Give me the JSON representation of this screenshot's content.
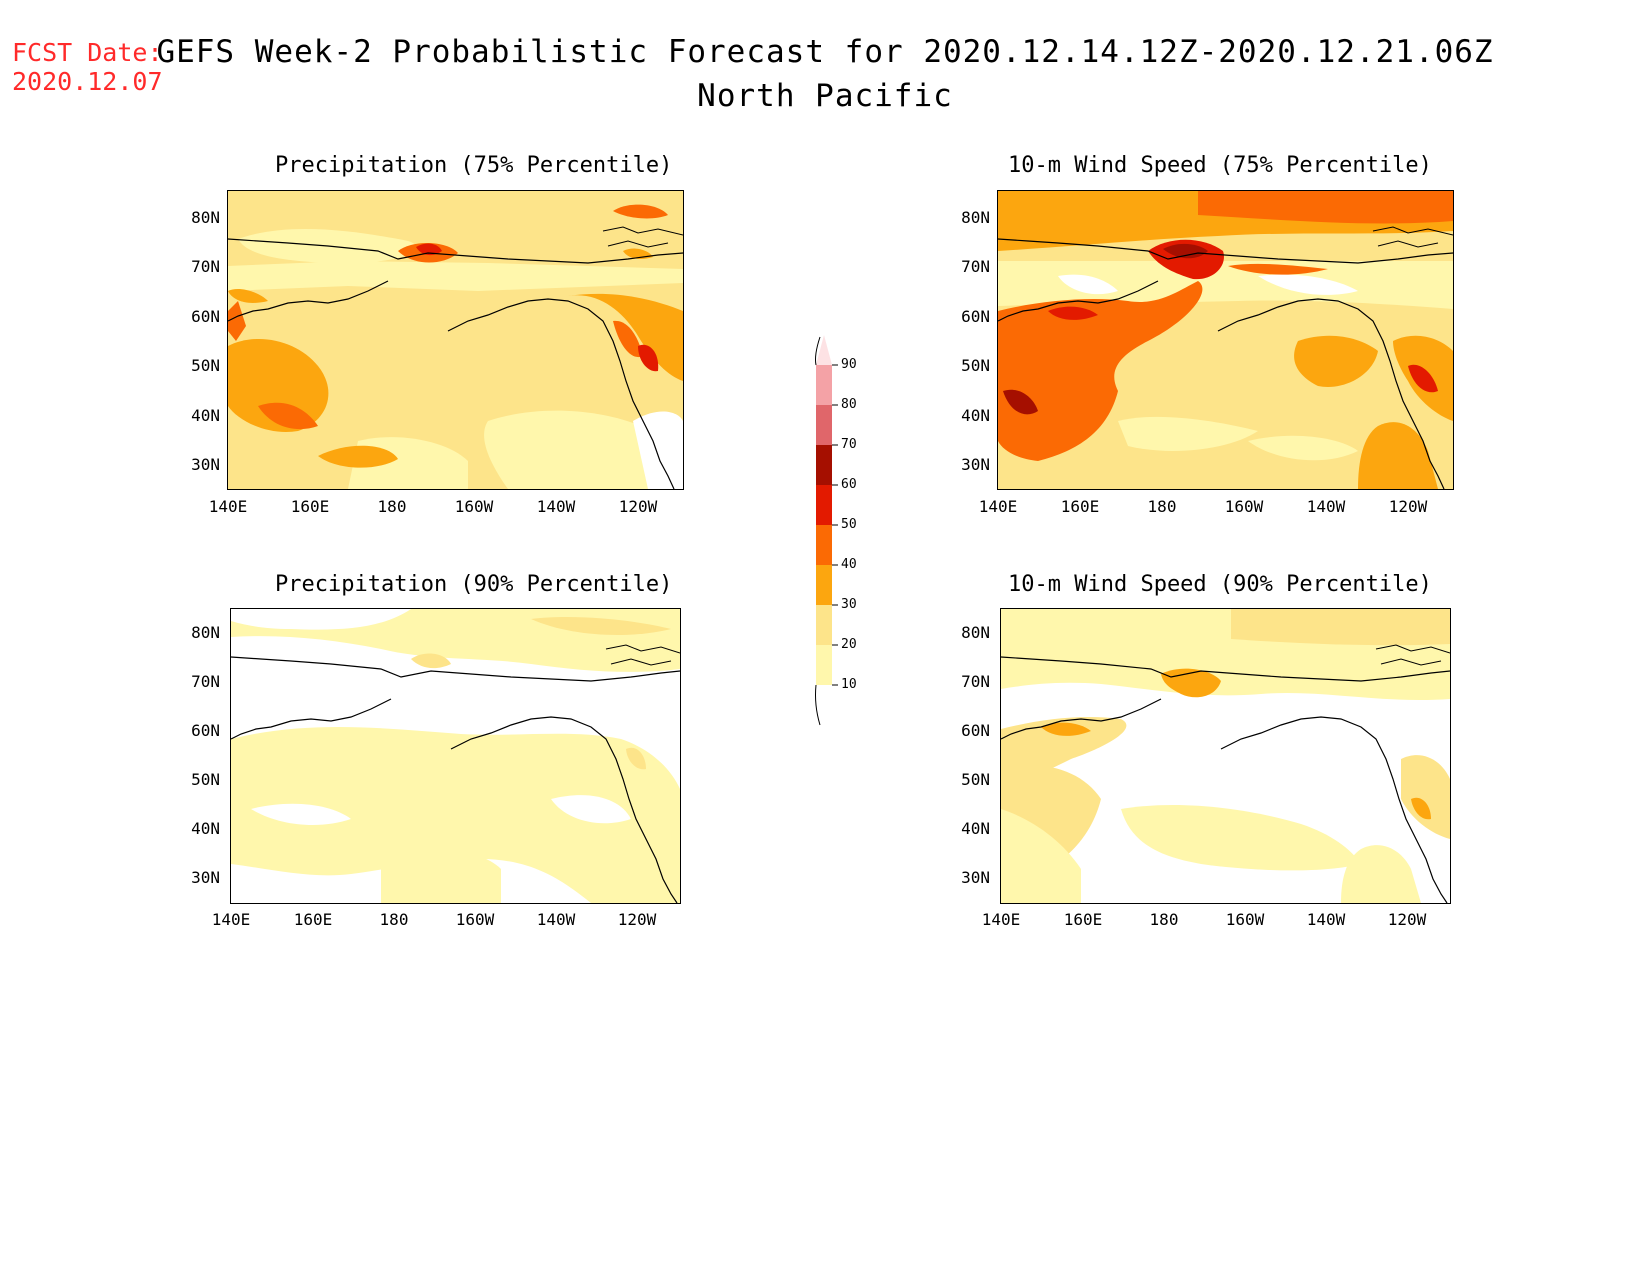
{
  "header": {
    "fcst_label": "FCST Date:",
    "fcst_date": "2020.12.07",
    "title_line1": "GEFS Week-2 Probabilistic Forecast for 2020.12.14.12Z-2020.12.21.06Z",
    "title_line2": "North Pacific"
  },
  "axes": {
    "lat_labels": [
      "80N",
      "70N",
      "60N",
      "50N",
      "40N",
      "30N"
    ],
    "lon_labels": [
      "140E",
      "160E",
      "180",
      "160W",
      "140W",
      "120W"
    ]
  },
  "panels": [
    {
      "title": "Precipitation (75% Percentile)",
      "variable": "precipitation",
      "percentile": 75,
      "dominant_category": "20-30%",
      "max_category": "60-70%"
    },
    {
      "title": "10-m Wind Speed (75% Percentile)",
      "variable": "wind_speed_10m",
      "percentile": 75,
      "dominant_category": "20-30%",
      "max_category": "60-70%"
    },
    {
      "title": "Precipitation (90% Percentile)",
      "variable": "precipitation",
      "percentile": 90,
      "dominant_category": "10-20%",
      "max_category": "20-30%"
    },
    {
      "title": "10-m Wind Speed (90% Percentile)",
      "variable": "wind_speed_10m",
      "percentile": 90,
      "dominant_category": "10-20%",
      "max_category": "40-50%"
    }
  ],
  "colorbar": {
    "labels": [
      "10",
      "20",
      "30",
      "40",
      "50",
      "60",
      "70",
      "80",
      "90"
    ],
    "colors": [
      "#fff7ac",
      "#fde48a",
      "#fca60f",
      "#fb6a04",
      "#e31a00",
      "#a50f00",
      "#e0666a",
      "#f4a2a6",
      "#fde2e4"
    ]
  },
  "chart_data": {
    "type": "heatmap",
    "region": "North Pacific",
    "lat_range": [
      "25N",
      "85N"
    ],
    "lon_range": [
      "140E",
      "110W"
    ],
    "units": "probability (%)",
    "levels": [
      10,
      20,
      30,
      40,
      50,
      60,
      70,
      80,
      90
    ]
  }
}
